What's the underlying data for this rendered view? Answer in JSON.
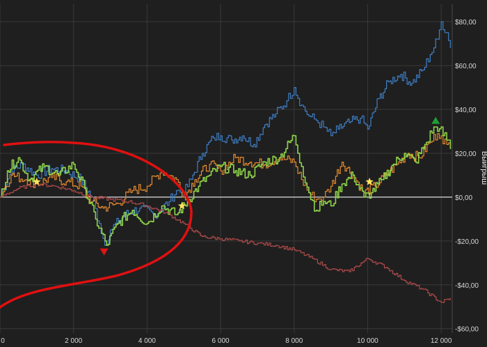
{
  "chart_data": {
    "type": "line",
    "ylabel": "Выигрыш",
    "xlim": [
      0,
      12300
    ],
    "ylim": [
      -62,
      88
    ],
    "x_ticks": [
      0,
      2000,
      4000,
      6000,
      8000,
      10000,
      12000
    ],
    "x_tick_labels": [
      "0",
      "2 000",
      "4 000",
      "6 000",
      "8 000",
      "10 000",
      "12 000"
    ],
    "y_ticks": [
      80,
      60,
      40,
      20,
      0,
      -20,
      -40,
      -60
    ],
    "y_tick_labels": [
      "$80,00",
      "$60,00",
      "$40,00",
      "$20,00",
      "$0,00",
      "-$20,00",
      "-$40,00",
      "-$60,00"
    ],
    "colors": {
      "background": "#1f1f1f",
      "grid": "#3a3a3a",
      "zero_line": "#e0e0e0",
      "annotation": "#e01010",
      "marker_min": "#e01515",
      "marker_max": "#1e9e35",
      "star": "#ffe45c"
    },
    "series": [
      {
        "color": "#3f7fc6",
        "x": [
          0,
          300,
          600,
          1000,
          1400,
          1800,
          2200,
          2500,
          2700,
          2850,
          3000,
          3400,
          3800,
          4200,
          4600,
          4800,
          5000,
          5200,
          5500,
          5800,
          6000,
          6300,
          6600,
          6900,
          7200,
          7500,
          7800,
          8000,
          8200,
          8400,
          8600,
          8800,
          9000,
          9200,
          9500,
          9800,
          10000,
          10300,
          10600,
          10900,
          11200,
          11500,
          11700,
          11900,
          12000,
          12150,
          12250
        ],
        "y": [
          0,
          12,
          15,
          10,
          13,
          12,
          8,
          0,
          -12,
          -22,
          -15,
          -8,
          -5,
          -8,
          -2,
          3,
          2,
          8,
          20,
          27,
          28,
          26,
          28,
          24,
          33,
          38,
          44,
          50,
          42,
          37,
          35,
          32,
          28,
          31,
          34,
          36,
          31,
          45,
          53,
          56,
          52,
          58,
          65,
          72,
          80,
          75,
          68
        ]
      },
      {
        "color": "#e88c2e",
        "x": [
          0,
          300,
          700,
          1000,
          1400,
          1800,
          2200,
          2500,
          2800,
          3200,
          3600,
          4000,
          4400,
          4800,
          5000,
          5300,
          5700,
          6000,
          6400,
          6800,
          7200,
          7600,
          8000,
          8200,
          8400,
          8600,
          8800,
          9000,
          9300,
          9600,
          9900,
          10200,
          10500,
          10800,
          11100,
          11400,
          11700,
          11900,
          12000,
          12150,
          12250
        ],
        "y": [
          0,
          10,
          8,
          6,
          9,
          7,
          5,
          -2,
          -5,
          -3,
          3,
          5,
          12,
          8,
          0,
          8,
          15,
          12,
          18,
          16,
          15,
          18,
          16,
          8,
          2,
          -1,
          0,
          5,
          16,
          10,
          2,
          5,
          10,
          15,
          20,
          18,
          25,
          29,
          28,
          24,
          22
        ]
      },
      {
        "color": "#8fd449",
        "x": [
          0,
          200,
          500,
          800,
          1200,
          1600,
          2000,
          2300,
          2600,
          2900,
          3200,
          3600,
          4000,
          4400,
          4800,
          5100,
          5400,
          5700,
          6000,
          6400,
          6800,
          7200,
          7600,
          8000,
          8200,
          8400,
          8600,
          8800,
          9000,
          9300,
          9600,
          9900,
          10100,
          10400,
          10700,
          11000,
          11300,
          11600,
          11800,
          11900,
          12000,
          12150,
          12250
        ],
        "y": [
          0,
          12,
          18,
          8,
          14,
          10,
          15,
          4,
          -10,
          -22,
          -12,
          -6,
          -12,
          -4,
          -8,
          -2,
          5,
          10,
          14,
          12,
          10,
          16,
          18,
          28,
          14,
          2,
          -6,
          -2,
          -4,
          6,
          10,
          0,
          2,
          8,
          15,
          20,
          16,
          25,
          32,
          30,
          32,
          26,
          22
        ]
      },
      {
        "color": "#b04a4a",
        "x": [
          0,
          500,
          1000,
          1500,
          2000,
          2500,
          3000,
          3500,
          4000,
          4500,
          5000,
          5500,
          6000,
          6500,
          7000,
          7500,
          8000,
          8500,
          9000,
          9500,
          10000,
          10500,
          11000,
          11500,
          12000,
          12250
        ],
        "y": [
          0,
          4,
          6,
          5,
          3,
          0,
          -1,
          -2,
          -4,
          -7,
          -12,
          -18,
          -19,
          -20,
          -21,
          -22,
          -24,
          -28,
          -33,
          -34,
          -28,
          -32,
          -38,
          -42,
          -48,
          -46
        ]
      }
    ],
    "markers": [
      {
        "shape": "triangle-down",
        "x": 2830,
        "y": -25
      },
      {
        "shape": "triangle-up",
        "x": 11850,
        "y": 35
      },
      {
        "shape": "star",
        "x": 1000,
        "y": 7
      },
      {
        "shape": "star",
        "x": 4950,
        "y": -4
      },
      {
        "shape": "star",
        "x": 10050,
        "y": 7
      }
    ]
  }
}
